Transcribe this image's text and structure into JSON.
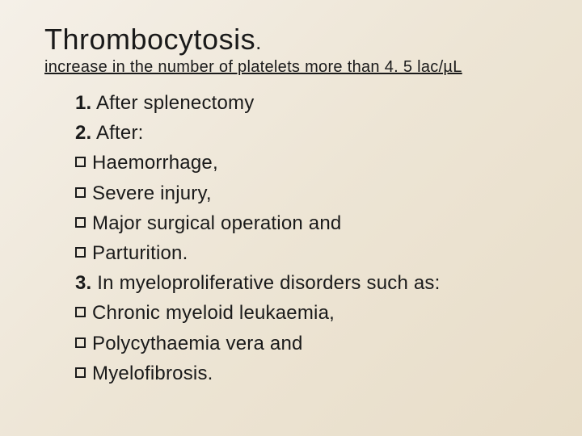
{
  "title": "Thrombocytosis",
  "title_period": ".",
  "subtitle": "increase in the number of platelets more than 4. 5 lac/µL",
  "items": {
    "l1_num": "1.",
    "l1_text": " After splenectomy",
    "l2_num": "2.",
    "l2_text": " After:",
    "b1": "Haemorrhage,",
    "b2": "Severe injury,",
    "b3": "Major surgical operation and",
    "b4": "Parturition.",
    "l3_num": "3.",
    "l3_text": " In myeloproliferative disorders such as:",
    "b5": "Chronic myeloid leukaemia,",
    "b6": "Polycythaemia vera and",
    "b7": "Myelofibrosis."
  },
  "colors": {
    "text": "#1a1a1a",
    "bg_light": "#f5f0e8",
    "bg_dark": "#e8ddc8"
  },
  "fonts": {
    "title_size": 36,
    "subtitle_size": 20,
    "body_size": 24
  }
}
